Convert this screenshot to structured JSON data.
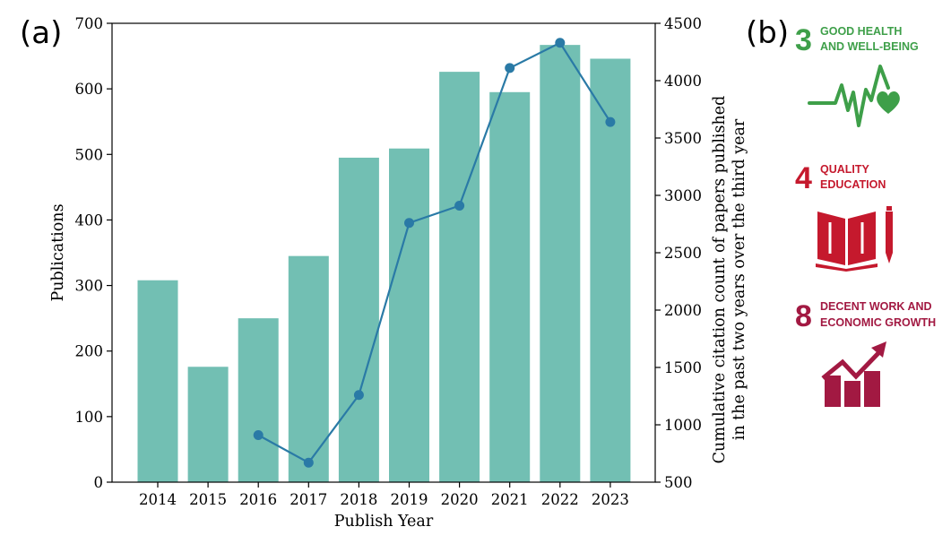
{
  "panel_a_label": "(a)",
  "panel_b_label": "(b)",
  "chart_data": {
    "type": "bar",
    "categories": [
      "2014",
      "2015",
      "2016",
      "2017",
      "2018",
      "2019",
      "2020",
      "2021",
      "2022",
      "2023"
    ],
    "series": [
      {
        "values": [
          308,
          176,
          250,
          345,
          495,
          509,
          626,
          595,
          667,
          646
        ],
        "color": "#72bfb3",
        "axis": "left"
      },
      {
        "values": [
          null,
          null,
          910,
          670,
          1260,
          2760,
          2910,
          4110,
          4330,
          3640
        ],
        "color": "#2a7aa6",
        "axis": "right",
        "type": "line"
      }
    ],
    "xlabel": "Publish Year",
    "ylabel": "Publications",
    "y2label_line1": "Cumulative citation count of papers published",
    "y2label_line2": "in the past two years over the third year",
    "ylim": [
      0,
      700
    ],
    "y2lim": [
      500,
      4500
    ],
    "yticks": [
      0,
      100,
      200,
      300,
      400,
      500,
      600,
      700
    ],
    "y2ticks": [
      500,
      1000,
      1500,
      2000,
      2500,
      3000,
      3500,
      4000,
      4500
    ],
    "grid": false
  },
  "sdgs": [
    {
      "number": "3",
      "line1": "GOOD HEALTH",
      "line2": "AND WELL-BEING",
      "color": "#3e9f49",
      "icon": "heartbeat-icon"
    },
    {
      "number": "4",
      "line1": "QUALITY",
      "line2": "EDUCATION",
      "color": "#c5192d",
      "icon": "book-pencil-icon"
    },
    {
      "number": "8",
      "line1": "DECENT WORK AND",
      "line2": "ECONOMIC GROWTH",
      "color": "#a21942",
      "icon": "growth-chart-icon"
    }
  ]
}
